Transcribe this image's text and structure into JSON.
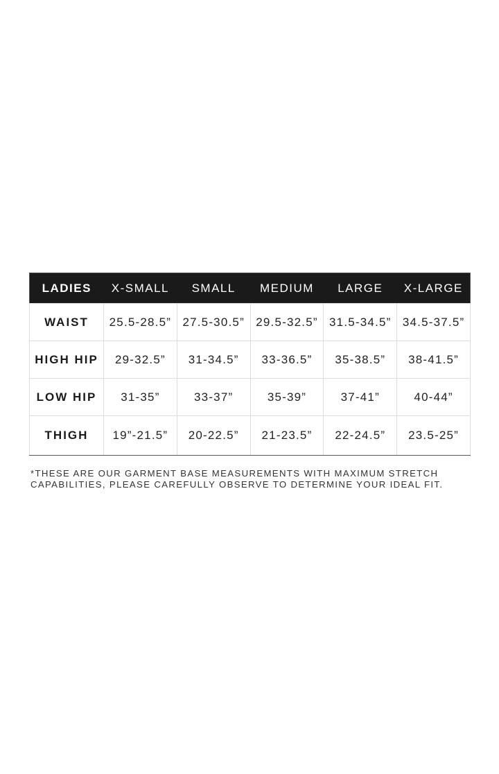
{
  "table": {
    "headers": [
      "LADIES",
      "X-SMALL",
      "SMALL",
      "MEDIUM",
      "LARGE",
      "X-LARGE"
    ],
    "rows": [
      {
        "label": "WAIST",
        "values": [
          "25.5-28.5”",
          "27.5-30.5”",
          "29.5-32.5”",
          "31.5-34.5”",
          "34.5-37.5”"
        ]
      },
      {
        "label": "HIGH HIP",
        "values": [
          "29-32.5”",
          "31-34.5”",
          "33-36.5”",
          "35-38.5”",
          "38-41.5”"
        ]
      },
      {
        "label": "LOW HIP",
        "values": [
          "31-35”",
          "33-37”",
          "35-39”",
          "37-41”",
          "40-44”"
        ]
      },
      {
        "label": "THIGH",
        "values": [
          "19”-21.5”",
          "20-22.5”",
          "21-23.5”",
          "22-24.5”",
          "23.5-25”"
        ]
      }
    ]
  },
  "note": {
    "line1": "*THESE ARE OUR GARMENT BASE MEASUREMENTS WITH MAXIMUM STRETCH",
    "line2": "CAPABILITIES, PLEASE CAREFULLY OBSERVE TO DETERMINE YOUR IDEAL FIT."
  },
  "colors": {
    "header_bg": "#1a1a1a",
    "header_text": "#ffffff",
    "grid": "#dddddd"
  }
}
